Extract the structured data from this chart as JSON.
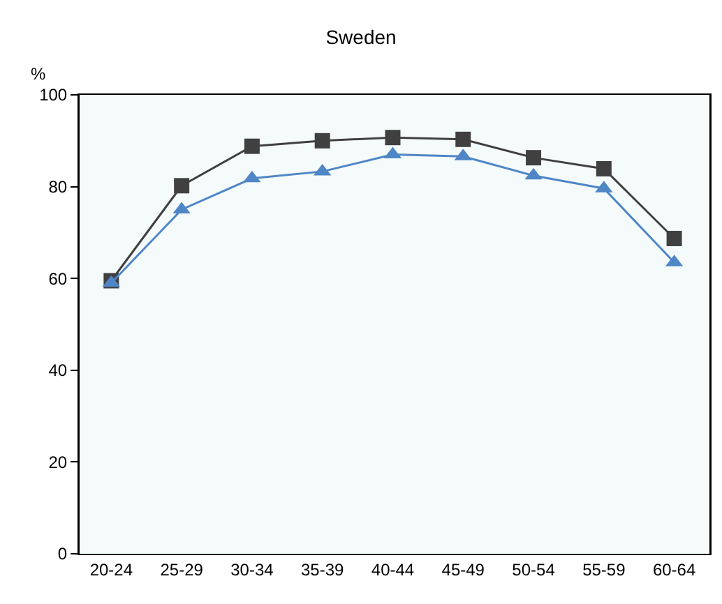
{
  "chart_data": {
    "type": "line",
    "title": "Sweden",
    "ylabel": "%",
    "categories": [
      "20-24",
      "25-29",
      "30-34",
      "35-39",
      "40-44",
      "45-49",
      "50-54",
      "55-59",
      "60-64"
    ],
    "series": [
      {
        "color": "#404040",
        "marker": "square",
        "values": [
          59.5,
          80.2,
          88.8,
          90,
          90.7,
          90.3,
          86.3,
          83.9,
          68.7
        ]
      },
      {
        "color": "#4f86c6",
        "marker": "triangle",
        "values": [
          59,
          75,
          81.8,
          83.3,
          87,
          86.6,
          82.4,
          79.6,
          63.5
        ]
      }
    ],
    "ylim": [
      0,
      100
    ],
    "yticks": [
      0,
      20,
      40,
      60,
      80,
      100
    ],
    "grid": false,
    "line_style": "solid"
  }
}
